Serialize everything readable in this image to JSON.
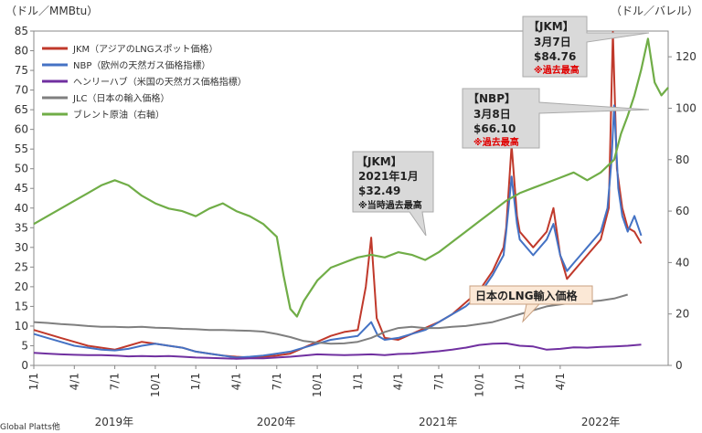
{
  "chart_data": {
    "type": "line",
    "left_axis_unit": "（ドル／MMBtu）",
    "right_axis_unit": "（ドル／バレル）",
    "left_ylim": [
      0,
      85
    ],
    "left_ticks": [
      "0",
      "5",
      "10",
      "15",
      "20",
      "25",
      "30",
      "35",
      "40",
      "45",
      "50",
      "55",
      "60",
      "65",
      "70",
      "75",
      "80",
      "85"
    ],
    "right_ylim": [
      0,
      130
    ],
    "right_ticks": [
      "0",
      "20",
      "40",
      "60",
      "80",
      "100",
      "120"
    ],
    "x_ticks": [
      "1/1",
      "4/1",
      "7/1",
      "10/1",
      "1/1",
      "4/1",
      "7/1",
      "10/1",
      "1/1",
      "4/1",
      "7/1",
      "10/1",
      "1/1",
      "4/1"
    ],
    "years": [
      "2019年",
      "2020年",
      "2021年",
      "2022年"
    ],
    "source": "Global Platts他",
    "grid": false,
    "legend_position": "top-left",
    "series": [
      {
        "name": "JKM（アジアのLNGスポット価格）",
        "color": "#c0392b",
        "axis": "left",
        "points": [
          [
            0,
            9
          ],
          [
            1,
            8
          ],
          [
            2,
            7
          ],
          [
            3,
            6
          ],
          [
            4,
            5
          ],
          [
            5,
            4.5
          ],
          [
            6,
            4
          ],
          [
            7,
            5
          ],
          [
            8,
            6
          ],
          [
            9,
            5.5
          ],
          [
            10,
            5
          ],
          [
            11,
            4.5
          ],
          [
            12,
            3.5
          ],
          [
            13,
            3
          ],
          [
            14,
            2.5
          ],
          [
            15,
            2.2
          ],
          [
            16,
            2
          ],
          [
            17,
            2.2
          ],
          [
            18,
            2.5
          ],
          [
            19,
            3
          ],
          [
            20,
            4.5
          ],
          [
            21,
            6
          ],
          [
            22,
            7.5
          ],
          [
            23,
            8.5
          ],
          [
            24,
            9
          ],
          [
            24.6,
            20
          ],
          [
            25,
            32.49
          ],
          [
            25.4,
            12
          ],
          [
            26,
            7
          ],
          [
            27,
            6.5
          ],
          [
            28,
            8
          ],
          [
            29,
            9.5
          ],
          [
            30,
            11
          ],
          [
            31,
            13
          ],
          [
            32,
            16
          ],
          [
            33,
            19
          ],
          [
            34,
            24
          ],
          [
            34.8,
            30
          ],
          [
            35,
            35
          ],
          [
            35.4,
            56
          ],
          [
            35.8,
            38
          ],
          [
            36,
            34
          ],
          [
            37,
            30
          ],
          [
            38,
            34
          ],
          [
            38.5,
            40
          ],
          [
            39,
            28
          ],
          [
            39.5,
            22
          ],
          [
            40,
            24
          ],
          [
            41,
            28
          ],
          [
            42,
            32
          ],
          [
            42.6,
            40
          ],
          [
            42.9,
            84.76
          ],
          [
            43.2,
            50
          ],
          [
            43.6,
            40
          ],
          [
            44,
            35
          ],
          [
            44.5,
            34
          ],
          [
            45,
            31
          ]
        ]
      },
      {
        "name": "NBP（欧州の天然ガス価格指標）",
        "color": "#4472c4",
        "axis": "left",
        "points": [
          [
            0,
            8
          ],
          [
            1,
            7
          ],
          [
            2,
            6
          ],
          [
            3,
            5
          ],
          [
            4,
            4.5
          ],
          [
            5,
            4
          ],
          [
            6,
            3.8
          ],
          [
            7,
            4.2
          ],
          [
            8,
            5
          ],
          [
            9,
            5.5
          ],
          [
            10,
            5
          ],
          [
            11,
            4.5
          ],
          [
            12,
            3.5
          ],
          [
            13,
            3
          ],
          [
            14,
            2.5
          ],
          [
            15,
            2
          ],
          [
            16,
            2.2
          ],
          [
            17,
            2.5
          ],
          [
            18,
            3
          ],
          [
            19,
            3.5
          ],
          [
            20,
            4.5
          ],
          [
            21,
            5.5
          ],
          [
            22,
            6.5
          ],
          [
            23,
            7
          ],
          [
            24,
            7.5
          ],
          [
            25,
            11
          ],
          [
            25.5,
            7.5
          ],
          [
            26,
            6.5
          ],
          [
            27,
            7
          ],
          [
            28,
            8
          ],
          [
            29,
            9
          ],
          [
            30,
            11
          ],
          [
            31,
            13
          ],
          [
            32,
            15
          ],
          [
            33,
            18
          ],
          [
            34,
            23
          ],
          [
            34.8,
            28
          ],
          [
            35,
            34
          ],
          [
            35.4,
            48
          ],
          [
            35.8,
            36
          ],
          [
            36,
            32
          ],
          [
            37,
            28
          ],
          [
            38,
            32
          ],
          [
            38.5,
            36
          ],
          [
            39,
            28
          ],
          [
            39.5,
            24
          ],
          [
            40,
            26
          ],
          [
            41,
            30
          ],
          [
            42,
            34
          ],
          [
            42.5,
            40
          ],
          [
            42.8,
            52
          ],
          [
            43,
            66.1
          ],
          [
            43.3,
            45
          ],
          [
            43.6,
            38
          ],
          [
            44,
            34
          ],
          [
            44.5,
            38
          ],
          [
            45,
            33
          ]
        ]
      },
      {
        "name": "ヘンリーハブ（米国の天然ガス価格指標）",
        "color": "#7030a0",
        "axis": "left",
        "points": [
          [
            0,
            3.2
          ],
          [
            1,
            3
          ],
          [
            2,
            2.8
          ],
          [
            3,
            2.7
          ],
          [
            4,
            2.6
          ],
          [
            5,
            2.6
          ],
          [
            6,
            2.5
          ],
          [
            7,
            2.3
          ],
          [
            8,
            2.4
          ],
          [
            9,
            2.3
          ],
          [
            10,
            2.4
          ],
          [
            11,
            2.2
          ],
          [
            12,
            2
          ],
          [
            13,
            1.9
          ],
          [
            14,
            1.8
          ],
          [
            15,
            1.7
          ],
          [
            16,
            1.8
          ],
          [
            17,
            1.8
          ],
          [
            18,
            2
          ],
          [
            19,
            2.2
          ],
          [
            20,
            2.5
          ],
          [
            21,
            2.8
          ],
          [
            22,
            2.7
          ],
          [
            23,
            2.6
          ],
          [
            24,
            2.7
          ],
          [
            25,
            2.8
          ],
          [
            26,
            2.6
          ],
          [
            27,
            2.9
          ],
          [
            28,
            3
          ],
          [
            29,
            3.3
          ],
          [
            30,
            3.6
          ],
          [
            31,
            4
          ],
          [
            32,
            4.5
          ],
          [
            33,
            5.2
          ],
          [
            34,
            5.5
          ],
          [
            35,
            5.6
          ],
          [
            36,
            5
          ],
          [
            37,
            4.8
          ],
          [
            38,
            4
          ],
          [
            39,
            4.2
          ],
          [
            40,
            4.6
          ],
          [
            41,
            4.5
          ],
          [
            42,
            4.7
          ],
          [
            43,
            4.8
          ],
          [
            44,
            5
          ],
          [
            45,
            5.3
          ]
        ]
      },
      {
        "name": "JLC（日本の輸入価格）",
        "color": "#7f7f7f",
        "axis": "left",
        "points": [
          [
            0,
            11
          ],
          [
            1,
            10.8
          ],
          [
            2,
            10.5
          ],
          [
            3,
            10.3
          ],
          [
            4,
            10
          ],
          [
            5,
            9.8
          ],
          [
            6,
            9.8
          ],
          [
            7,
            9.7
          ],
          [
            8,
            9.8
          ],
          [
            9,
            9.6
          ],
          [
            10,
            9.5
          ],
          [
            11,
            9.3
          ],
          [
            12,
            9.2
          ],
          [
            13,
            9
          ],
          [
            14,
            9
          ],
          [
            15,
            8.9
          ],
          [
            16,
            8.8
          ],
          [
            17,
            8.6
          ],
          [
            18,
            8
          ],
          [
            19,
            7.2
          ],
          [
            20,
            6.2
          ],
          [
            21,
            5.8
          ],
          [
            22,
            5.5
          ],
          [
            23,
            5.6
          ],
          [
            24,
            6
          ],
          [
            25,
            7
          ],
          [
            26,
            8.5
          ],
          [
            27,
            9.5
          ],
          [
            28,
            9.8
          ],
          [
            29,
            9.5
          ],
          [
            30,
            9.5
          ],
          [
            31,
            9.8
          ],
          [
            32,
            10
          ],
          [
            33,
            10.5
          ],
          [
            34,
            11
          ],
          [
            35,
            12
          ],
          [
            36,
            13
          ],
          [
            37,
            14
          ],
          [
            38,
            15
          ],
          [
            39,
            15.5
          ],
          [
            40,
            16
          ],
          [
            41,
            16.2
          ],
          [
            42,
            16.5
          ],
          [
            43,
            17
          ],
          [
            44,
            18
          ]
        ]
      },
      {
        "name": "ブレント原油（右軸）",
        "color": "#70ad47",
        "axis": "right",
        "points": [
          [
            0,
            55
          ],
          [
            1,
            58
          ],
          [
            2,
            61
          ],
          [
            3,
            64
          ],
          [
            4,
            67
          ],
          [
            5,
            70
          ],
          [
            6,
            72
          ],
          [
            7,
            70
          ],
          [
            8,
            66
          ],
          [
            9,
            63
          ],
          [
            10,
            61
          ],
          [
            11,
            60
          ],
          [
            12,
            58
          ],
          [
            13,
            61
          ],
          [
            14,
            63
          ],
          [
            15,
            60
          ],
          [
            16,
            58
          ],
          [
            17,
            55
          ],
          [
            18,
            50
          ],
          [
            18.5,
            35
          ],
          [
            19,
            22
          ],
          [
            19.5,
            19
          ],
          [
            20,
            25
          ],
          [
            21,
            33
          ],
          [
            22,
            38
          ],
          [
            23,
            40
          ],
          [
            24,
            42
          ],
          [
            25,
            43
          ],
          [
            26,
            42
          ],
          [
            27,
            44
          ],
          [
            28,
            43
          ],
          [
            29,
            41
          ],
          [
            30,
            44
          ],
          [
            31,
            48
          ],
          [
            32,
            52
          ],
          [
            33,
            56
          ],
          [
            34,
            60
          ],
          [
            35,
            64
          ],
          [
            36,
            67
          ],
          [
            37,
            69
          ],
          [
            38,
            71
          ],
          [
            39,
            73
          ],
          [
            40,
            75
          ],
          [
            41,
            72
          ],
          [
            42,
            75
          ],
          [
            43,
            80
          ],
          [
            43.5,
            90
          ],
          [
            44,
            97
          ],
          [
            44.5,
            105
          ],
          [
            45,
            115
          ],
          [
            45.5,
            127
          ],
          [
            46,
            110
          ],
          [
            46.5,
            105
          ],
          [
            47,
            108
          ]
        ]
      }
    ],
    "callouts": [
      {
        "title": "【JKM】",
        "date": "3月7日",
        "value": "$84.76",
        "note": "※過去最高"
      },
      {
        "title": "【NBP】",
        "date": "3月8日",
        "value": "$66.10",
        "note": "※過去最高"
      },
      {
        "title": "【JKM】",
        "date": "2021年1月",
        "value": "$32.49",
        "note": "※当時過去最高"
      }
    ],
    "annotation": "日本のLNG輸入価格"
  }
}
